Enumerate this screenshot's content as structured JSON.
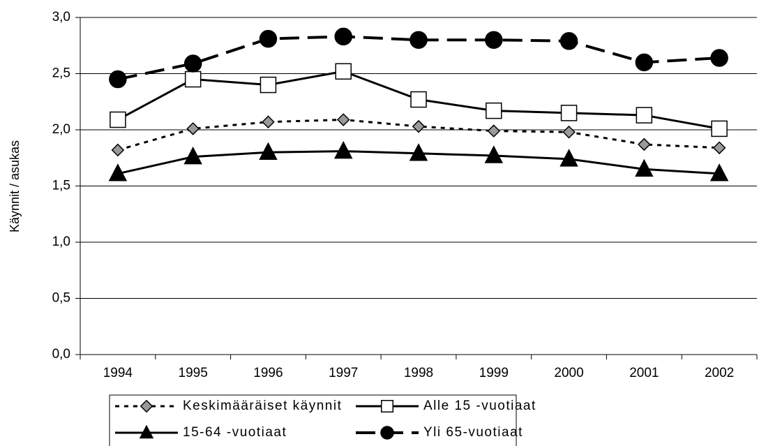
{
  "chart_data": {
    "type": "line",
    "y_label": "Käynnit / asukas",
    "categories": [
      "1994",
      "1995",
      "1996",
      "1997",
      "1998",
      "1999",
      "2000",
      "2001",
      "2002"
    ],
    "ylim": [
      0,
      3
    ],
    "yticks": [
      {
        "value": 0,
        "label": "0,0"
      },
      {
        "value": 0.5,
        "label": "0,5"
      },
      {
        "value": 1,
        "label": "1,0"
      },
      {
        "value": 1.5,
        "label": "1,5"
      },
      {
        "value": 2,
        "label": "2,0"
      },
      {
        "value": 2.5,
        "label": "2,5"
      },
      {
        "value": 3,
        "label": "3,0"
      }
    ],
    "grid": true,
    "legend": "bottom",
    "series": [
      {
        "name": "Keskimääräiset käynnit",
        "color": "#000000",
        "line_style": "dotted",
        "marker": "diamond",
        "marker_fill": "#999999",
        "values": [
          1.82,
          2.01,
          2.07,
          2.09,
          2.03,
          1.99,
          1.98,
          1.87,
          1.84
        ]
      },
      {
        "name": "Alle 15 -vuotiaat",
        "color": "#000000",
        "line_style": "solid",
        "marker": "square",
        "marker_fill": "#ffffff",
        "values": [
          2.09,
          2.45,
          2.4,
          2.52,
          2.27,
          2.17,
          2.15,
          2.13,
          2.01
        ]
      },
      {
        "name": "15-64 -vuotiaat",
        "color": "#000000",
        "line_style": "solid",
        "marker": "triangle",
        "marker_fill": "#000000",
        "values": [
          1.61,
          1.76,
          1.8,
          1.81,
          1.79,
          1.77,
          1.74,
          1.65,
          1.61
        ]
      },
      {
        "name": "Yli 65-vuotiaat",
        "color": "#000000",
        "line_style": "dashed",
        "marker": "circle",
        "marker_fill": "#000000",
        "values": [
          2.45,
          2.59,
          2.81,
          2.83,
          2.8,
          2.8,
          2.79,
          2.6,
          2.64
        ]
      }
    ]
  }
}
